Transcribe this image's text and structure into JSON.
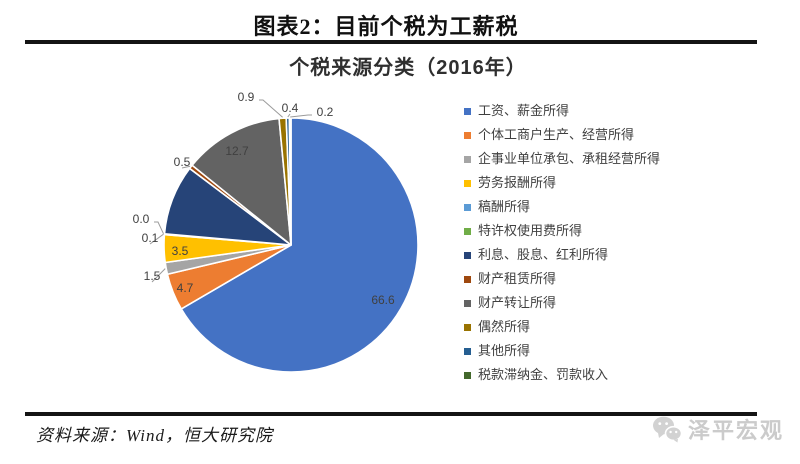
{
  "header": {
    "title": "图表2：目前个税为工薪税"
  },
  "chart_data": {
    "type": "pie",
    "title": "个税来源分类（2016年）",
    "unit": "percent_share",
    "legend_position": "right",
    "slices": [
      {
        "name": "工资、薪金所得",
        "value": 66.6,
        "color": "#4472C4",
        "label": "66.6",
        "label_placement": "inside"
      },
      {
        "name": "个体工商户生产、经营所得",
        "value": 4.7,
        "color": "#ED7D31",
        "label": "4.7",
        "label_placement": "inside"
      },
      {
        "name": "企事业单位承包、承租经营所得",
        "value": 1.5,
        "color": "#A5A5A5",
        "label": "1.5",
        "label_placement": "outside"
      },
      {
        "name": "劳务报酬所得",
        "value": 3.5,
        "color": "#FFC000",
        "label": "3.5",
        "label_placement": "inside"
      },
      {
        "name": "稿酬所得",
        "value": 0.1,
        "color": "#5B9BD5",
        "label": "0.1",
        "label_placement": "outside"
      },
      {
        "name": "特许权使用费所得",
        "value": 0.0,
        "color": "#70AD47",
        "label": "0.0",
        "label_placement": "outside"
      },
      {
        "name": "利息、股息、红利所得",
        "value": 8.9,
        "color": "#264478",
        "label": "",
        "label_placement": "none"
      },
      {
        "name": "财产租赁所得",
        "value": 0.5,
        "color": "#9E480E",
        "label": "0.5",
        "label_placement": "outside"
      },
      {
        "name": "财产转让所得",
        "value": 12.7,
        "color": "#636363",
        "label": "12.7",
        "label_placement": "inside"
      },
      {
        "name": "偶然所得",
        "value": 0.9,
        "color": "#997300",
        "label": "0.9",
        "label_placement": "outside"
      },
      {
        "name": "其他所得",
        "value": 0.4,
        "color": "#255E91",
        "label": "0.4",
        "label_placement": "outside"
      },
      {
        "name": "税款滞纳金、罚款收入",
        "value": 0.2,
        "color": "#43682B",
        "label": "0.2",
        "label_placement": "outside"
      }
    ],
    "layout": {
      "svg_size": [
        460,
        365
      ],
      "center": [
        291,
        197
      ],
      "radius": 127,
      "start_angle_deg": 0,
      "direction": "clockwise",
      "slice_border_color": "#ffffff",
      "leader_line_color": "#9b9b9b",
      "label_positions": [
        [
          383,
          252
        ],
        [
          185,
          240
        ],
        [
          152,
          228
        ],
        [
          180,
          203
        ],
        [
          150,
          190
        ],
        [
          141,
          171
        ],
        null,
        [
          182,
          114
        ],
        [
          237,
          103
        ],
        [
          246,
          49
        ],
        [
          290,
          60
        ],
        [
          325,
          64
        ]
      ]
    }
  },
  "footer": {
    "source": "资料来源：Wind，恒大研究院",
    "watermark": "泽平宏观"
  }
}
